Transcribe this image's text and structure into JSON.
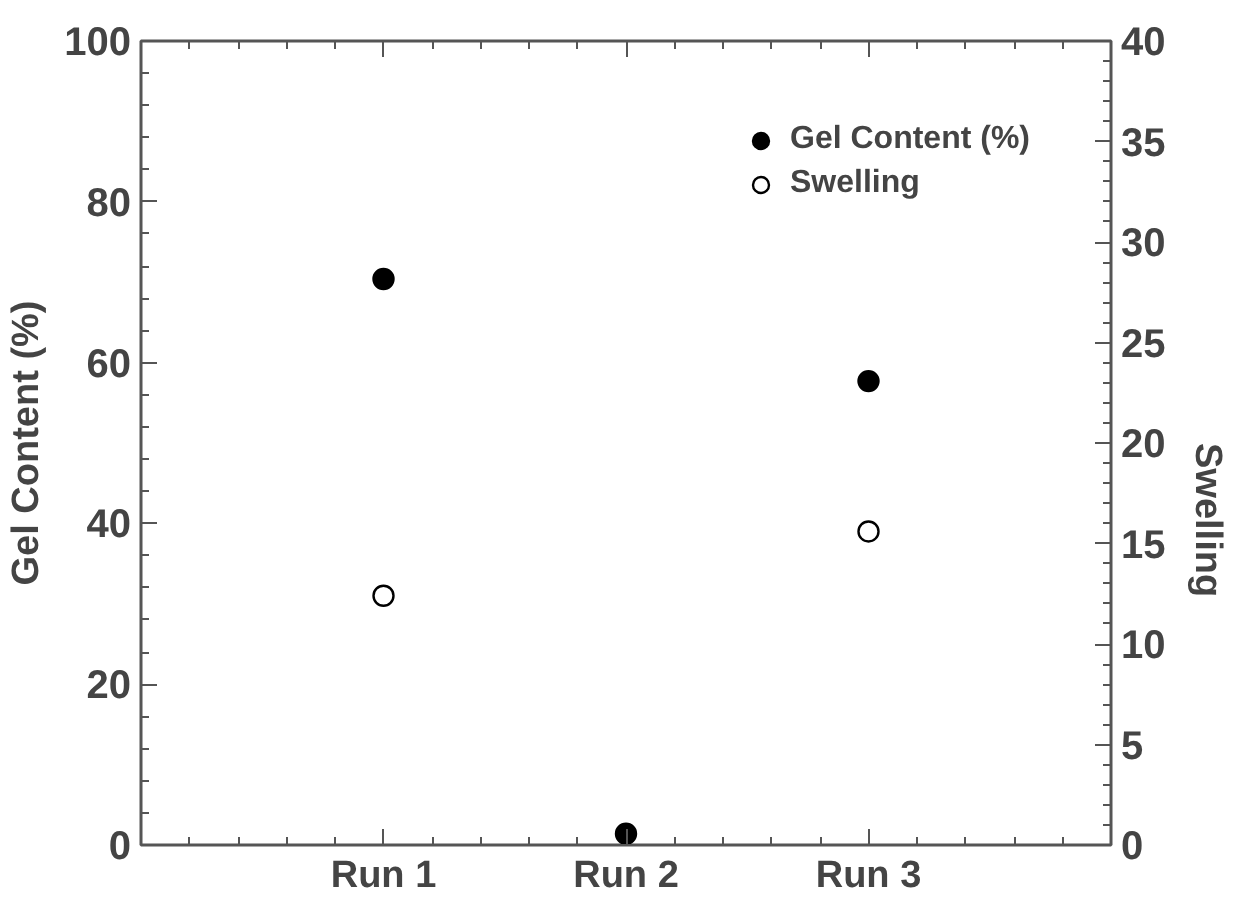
{
  "chart_data": {
    "type": "scatter",
    "categories": [
      "Run 1",
      "Run 2",
      "Run 3"
    ],
    "ylabel": "Gel Content (%)",
    "y2label": "Swelling",
    "ylim": [
      0,
      100
    ],
    "yticks": [
      0,
      20,
      40,
      60,
      80,
      100
    ],
    "y2lim": [
      0,
      40
    ],
    "y2ticks": [
      0,
      5,
      10,
      15,
      20,
      25,
      30,
      35,
      40
    ],
    "legend": "top right",
    "grid": false,
    "marker": "circle",
    "series": [
      {
        "name": "Gel Content (%)",
        "color": "#000000",
        "values": [
          70.4,
          1.4,
          57.7
        ]
      },
      {
        "name": "Swelling",
        "color": "#000000",
        "axis": "y2",
        "values": [
          12.4,
          null,
          15.6
        ]
      }
    ]
  }
}
